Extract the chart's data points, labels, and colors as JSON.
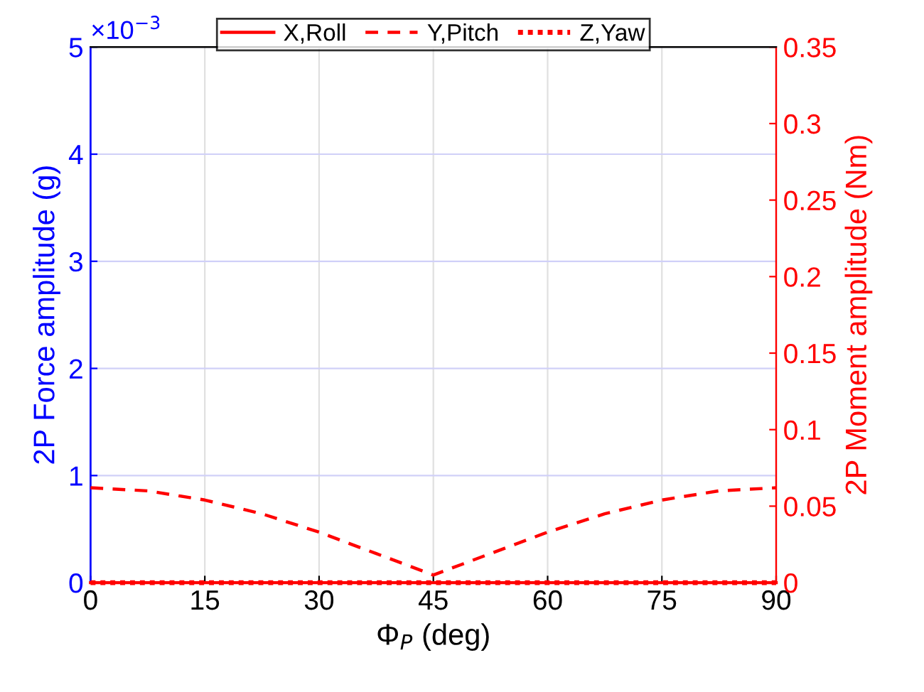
{
  "chart_data": {
    "type": "line",
    "xlabel": "Φ$_{P}$ (deg)",
    "ylabel": "2P Force amplitude (g)",
    "y2label": "2P Moment amplitude (Nm)",
    "x": [
      0,
      7.5,
      15,
      22.5,
      30,
      37.5,
      45,
      52.5,
      60,
      67.5,
      75,
      82.5,
      90
    ],
    "series": [
      {
        "name": "X,Roll",
        "color": "#ff0000",
        "axis": "y2",
        "line_style": "solid",
        "values": [
          0,
          0,
          0,
          0,
          0,
          0,
          0,
          0,
          0,
          0,
          0,
          0,
          0
        ]
      },
      {
        "name": "Y,Pitch",
        "color": "#ff0000",
        "axis": "y2",
        "line_style": "dashed",
        "values": [
          0.062,
          0.06,
          0.054,
          0.045,
          0.033,
          0.019,
          0.005,
          0.019,
          0.033,
          0.045,
          0.054,
          0.06,
          0.062
        ]
      },
      {
        "name": "Z,Yaw",
        "color": "#ff0000",
        "axis": "y2",
        "line_style": "dotted",
        "values": [
          0,
          0,
          0,
          0,
          0,
          0,
          0,
          0,
          0,
          0,
          0,
          0,
          0
        ]
      }
    ],
    "xlim": [
      0,
      90
    ],
    "xticks": [
      0,
      15,
      30,
      45,
      60,
      75,
      90
    ],
    "ylim": [
      0,
      5
    ],
    "yticks": [
      0,
      1,
      2,
      3,
      4,
      5
    ],
    "y2lim": [
      0,
      0.35
    ],
    "y2ticks": [
      0,
      0.05,
      0.1,
      0.15,
      0.2,
      0.25,
      0.3,
      0.35
    ],
    "annotations": [
      "×10$^{−3}$"
    ],
    "grid": true,
    "legend": "top",
    "marker": "none"
  }
}
